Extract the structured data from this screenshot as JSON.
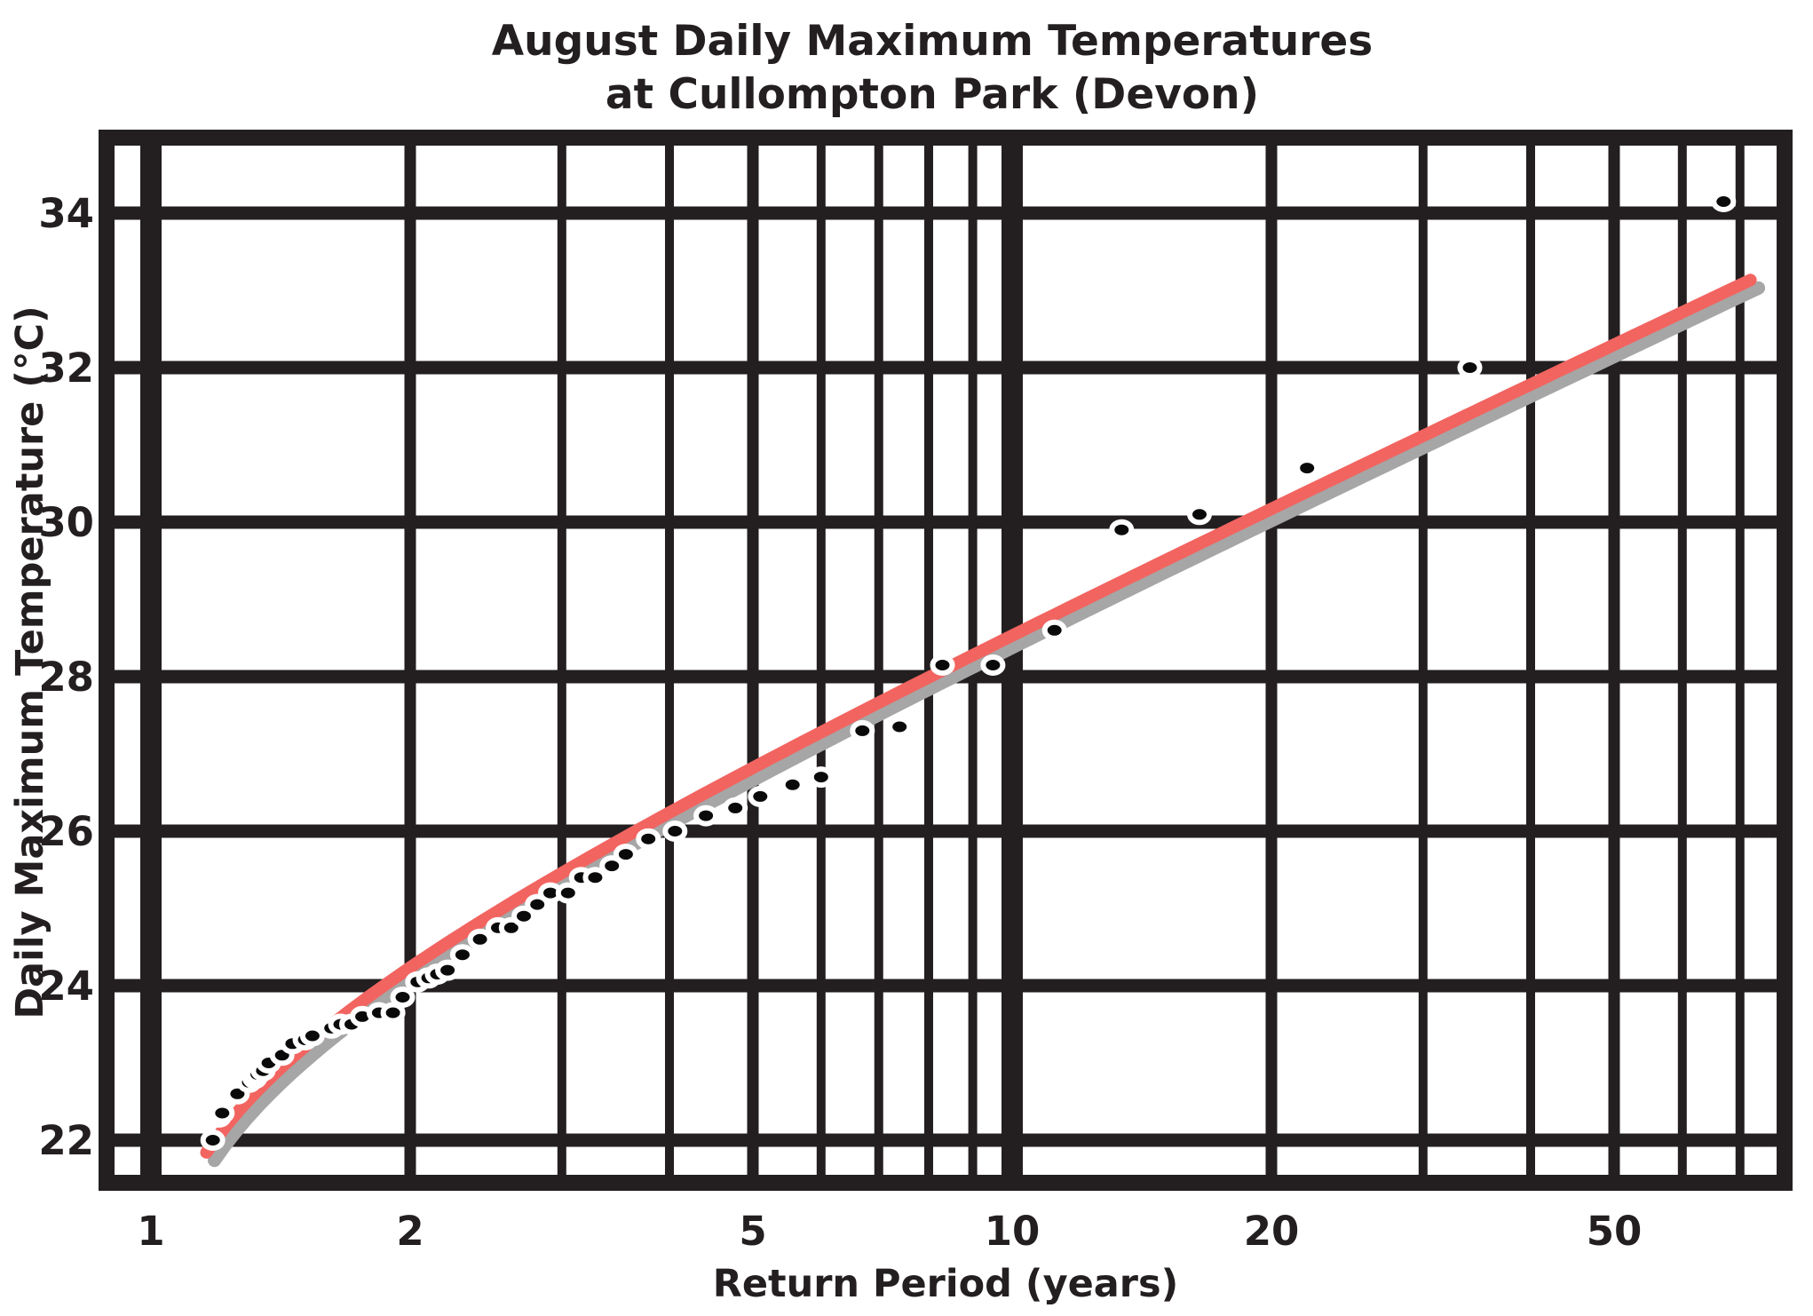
{
  "title": {
    "line1": "August Daily Maximum Temperatures",
    "line2": "at Cullompton Park (Devon)"
  },
  "axes": {
    "x_label": "Return Period (years)",
    "y_label": "Daily Maximum Temperature (°C)",
    "x_tick_labels": [
      "1",
      "2",
      "5",
      "10",
      "20",
      "50"
    ],
    "y_tick_labels": [
      "34",
      "32",
      "30",
      "28",
      "26",
      "24",
      "22"
    ]
  },
  "colors": {
    "grid": "#231f20",
    "fit_curve": "#f26460",
    "curve_shadow": "#a6a6a6",
    "point_fill": "#0a0a0a",
    "point_halo": "#ffffff",
    "background": "#ffffff"
  },
  "chart_data": {
    "type": "scatter",
    "title": "August Daily Maximum Temperatures at Cullompton Park (Devon)",
    "xlabel": "Return Period (years)",
    "ylabel": "Daily Maximum Temperature (°C)",
    "x_scale": "log",
    "xlim": [
      0.9,
      79
    ],
    "ylim": [
      21.5,
      35
    ],
    "grid": true,
    "x_ticks_labeled": [
      1,
      2,
      5,
      10,
      20,
      50
    ],
    "x_gridlines": [
      1,
      2,
      3,
      4,
      5,
      6,
      7,
      8,
      9,
      10,
      20,
      30,
      40,
      50,
      60,
      70
    ],
    "y_ticks": [
      34,
      32,
      30,
      28,
      26,
      24,
      22
    ],
    "series": [
      {
        "name": "observed-annual-maxima",
        "marker": "ellipse-black-white-halo",
        "points": [
          [
            1.18,
            22.0
          ],
          [
            1.2,
            22.3
          ],
          [
            1.21,
            22.35
          ],
          [
            1.26,
            22.6
          ],
          [
            1.3,
            22.75
          ],
          [
            1.32,
            22.8
          ],
          [
            1.33,
            22.85
          ],
          [
            1.35,
            22.9
          ],
          [
            1.37,
            23.0
          ],
          [
            1.42,
            23.1
          ],
          [
            1.46,
            23.25
          ],
          [
            1.51,
            23.3
          ],
          [
            1.54,
            23.35
          ],
          [
            1.62,
            23.45
          ],
          [
            1.66,
            23.5
          ],
          [
            1.71,
            23.5
          ],
          [
            1.76,
            23.6
          ],
          [
            1.84,
            23.65
          ],
          [
            1.91,
            23.65
          ],
          [
            1.96,
            23.85
          ],
          [
            2.04,
            24.05
          ],
          [
            2.1,
            24.1
          ],
          [
            2.15,
            24.15
          ],
          [
            2.21,
            24.2
          ],
          [
            2.3,
            24.4
          ],
          [
            2.41,
            24.6
          ],
          [
            2.53,
            24.75
          ],
          [
            2.62,
            24.75
          ],
          [
            2.71,
            24.9
          ],
          [
            2.81,
            25.05
          ],
          [
            2.91,
            25.2
          ],
          [
            3.05,
            25.2
          ],
          [
            3.16,
            25.4
          ],
          [
            3.28,
            25.4
          ],
          [
            3.43,
            25.55
          ],
          [
            3.56,
            25.7
          ],
          [
            3.78,
            25.9
          ],
          [
            4.06,
            26.0
          ],
          [
            4.41,
            26.2
          ],
          [
            4.77,
            26.3
          ],
          [
            5.1,
            26.45
          ],
          [
            5.56,
            26.6
          ],
          [
            6.0,
            26.7
          ],
          [
            6.7,
            27.3
          ],
          [
            7.4,
            27.35
          ],
          [
            8.3,
            28.15
          ],
          [
            9.5,
            28.15
          ],
          [
            11.2,
            28.6
          ],
          [
            13.4,
            29.9
          ],
          [
            16.5,
            30.1
          ],
          [
            22.0,
            30.7
          ],
          [
            34.0,
            32.0
          ],
          [
            67.0,
            34.15
          ]
        ]
      }
    ],
    "fit_curve": {
      "name": "gumbel-fit",
      "model": "gumbel",
      "mu": 23.4,
      "sigma": 2.28,
      "t_range": [
        1.16,
        72
      ]
    }
  }
}
